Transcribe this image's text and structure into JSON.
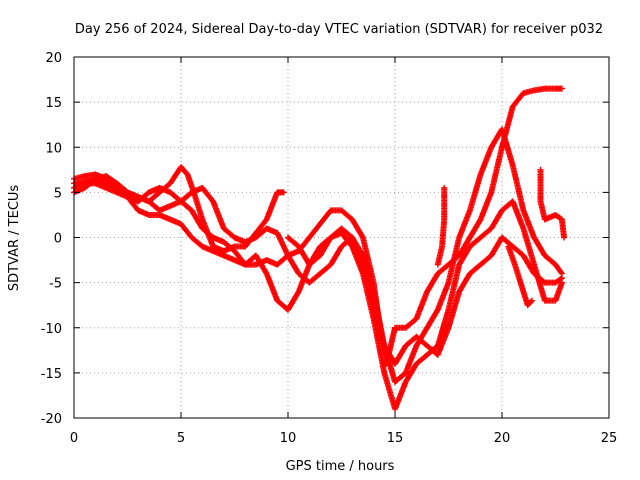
{
  "chart_data": {
    "type": "scatter",
    "title": "Day 256 of 2024, Sidereal Day-to-day VTEC variation (SDTVAR) for receiver p032",
    "xlabel": "GPS time / hours",
    "ylabel": "SDTVAR / TECUs",
    "xlim": [
      0,
      25
    ],
    "ylim": [
      -20,
      20
    ],
    "xticks": [
      "0",
      "5",
      "10",
      "15",
      "20",
      "25"
    ],
    "yticks": [
      "-20",
      "-15",
      "-10",
      "-5",
      "0",
      "5",
      "10",
      "15",
      "20"
    ],
    "grid": true,
    "marker": "+",
    "color": "#ff0000",
    "series": [
      {
        "x": [
          0,
          0.5,
          1,
          1.5,
          2,
          2.5,
          3,
          3.5,
          4,
          4.5,
          5,
          5.3,
          5.6,
          6,
          6.5,
          7,
          7.5,
          8,
          8.5,
          9,
          9.5,
          9.8
        ],
        "y": [
          5,
          5.5,
          6.5,
          6.8,
          6,
          5,
          4.5,
          4,
          5,
          6,
          7.8,
          7,
          5,
          2,
          -1,
          -1.5,
          -1,
          -1,
          0.5,
          2,
          5,
          5
        ]
      },
      {
        "x": [
          0,
          0.5,
          1,
          1.5,
          2,
          2.5,
          3,
          3.5,
          4,
          4.5,
          5,
          5.5,
          6,
          6.5,
          7,
          7.5,
          8,
          8.5,
          9,
          9.5,
          10,
          10.5,
          11,
          11.5,
          12,
          12.5,
          13,
          13.5,
          14,
          14.3,
          14.6,
          15,
          15.5,
          16,
          16.5,
          17,
          17.5,
          18,
          18.5,
          19,
          19.5,
          20,
          20.5,
          21,
          21.5,
          22,
          22.5,
          22.8
        ],
        "y": [
          6,
          6.2,
          6.5,
          6,
          5.5,
          4.5,
          3,
          2.5,
          2.5,
          2,
          1.5,
          0,
          -1,
          -1.5,
          -2,
          -2.5,
          -3,
          -3,
          -2.5,
          -3,
          -2,
          -1.5,
          0,
          1.5,
          3,
          3,
          2,
          0,
          -5,
          -10,
          -14,
          -10,
          -10,
          -9,
          -6,
          -4,
          -3,
          -2,
          0,
          2,
          5,
          10,
          14.5,
          16,
          16.3,
          16.5,
          16.5,
          16.5
        ]
      },
      {
        "x": [
          0,
          0.5,
          1,
          1.5,
          2,
          2.5,
          3,
          3.5,
          4,
          4.5,
          5,
          5.5,
          6,
          6.5,
          7,
          7.5,
          8,
          8.5,
          9,
          9.5,
          10,
          10.5,
          11,
          11.5,
          12,
          12.5,
          13,
          13.5,
          14,
          14.5,
          15,
          15.5,
          16,
          16.5,
          17,
          17.5,
          18,
          18.5,
          19,
          19.5,
          20,
          20.5,
          21,
          21.5,
          22,
          22.5,
          22.8
        ],
        "y": [
          6.5,
          6.8,
          7,
          6.5,
          6,
          5,
          4.5,
          4,
          3,
          3.5,
          4,
          5,
          5.5,
          4,
          1,
          0,
          -0.5,
          0,
          1,
          0.5,
          -2,
          -4,
          -5,
          -4,
          -3,
          -1,
          0,
          -3,
          -8,
          -12,
          -16,
          -15,
          -12,
          -10,
          -8,
          -5,
          0,
          3,
          7,
          10,
          12,
          8,
          3,
          0,
          -2,
          -3,
          -4
        ]
      },
      {
        "x": [
          0,
          0.5,
          1,
          1.5,
          2,
          2.5,
          3,
          3.5,
          4,
          4.5,
          5,
          5.5,
          6,
          6.5,
          7,
          7.5,
          8,
          8.5,
          9,
          9.5,
          10,
          10.5,
          11,
          11.5,
          12,
          12.5,
          13,
          13.5,
          14,
          14.5,
          15,
          15.5,
          16,
          16.5,
          17,
          17.5,
          18,
          18.5,
          19,
          19.5,
          20,
          20.5,
          21,
          21.5,
          22,
          22.5,
          22.8
        ],
        "y": [
          5.5,
          6,
          6,
          5.5,
          5,
          4.5,
          4,
          5,
          5.5,
          5,
          4,
          3,
          1,
          0,
          -0.5,
          -1.5,
          -3,
          -2,
          -4,
          -7,
          -8,
          -6,
          -3,
          -1,
          0,
          0.5,
          -1,
          -4,
          -9,
          -15,
          -19,
          -16,
          -14,
          -13,
          -12,
          -8,
          -3,
          -1,
          0,
          1,
          3,
          4,
          1,
          -3,
          -7,
          -7,
          -5
        ]
      },
      {
        "x": [
          10,
          10.5,
          11,
          11.5,
          12,
          12.5,
          13,
          13.5,
          14,
          14.5,
          15,
          15.5,
          16,
          16.5,
          17,
          17.5,
          18,
          18.5,
          19,
          19.5,
          20,
          20.5,
          21,
          21.5,
          22,
          22.5,
          22.8
        ],
        "y": [
          0,
          -1,
          -3,
          -2,
          0,
          1,
          0,
          -2,
          -6,
          -12,
          -14,
          -12,
          -11,
          -12,
          -13,
          -10,
          -6,
          -4,
          -3,
          -2,
          0,
          -1,
          -2,
          -4,
          -5,
          -5,
          -4.5
        ]
      },
      {
        "x": [
          17.3,
          17.3,
          17.2,
          17.0
        ],
        "y": [
          5.5,
          2,
          -1,
          -3
        ]
      },
      {
        "x": [
          21.8,
          21.8,
          22.0,
          22.5,
          22.8,
          22.9
        ],
        "y": [
          7.5,
          4,
          2,
          2.5,
          2,
          0
        ]
      },
      {
        "x": [
          20.3,
          20.6,
          21,
          21.2,
          21.4
        ],
        "y": [
          -1,
          -3,
          -6,
          -7.5,
          -7
        ]
      }
    ]
  }
}
